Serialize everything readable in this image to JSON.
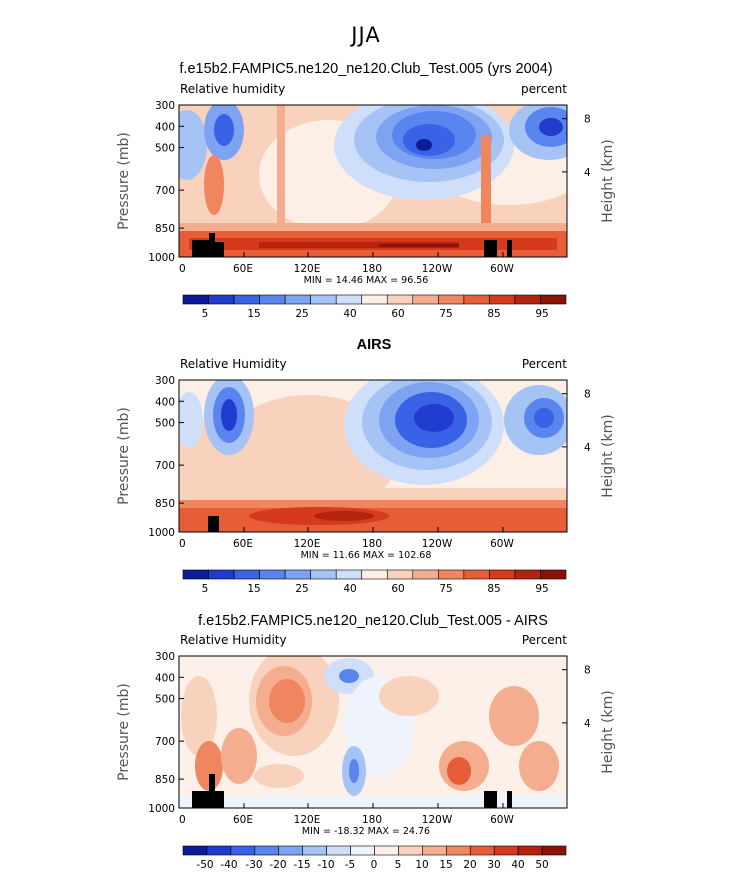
{
  "figure": {
    "main_title": "JJA",
    "colors": {
      "levels_rh": [
        "#0b1b9a",
        "#1f3ccf",
        "#3a62e6",
        "#5a84ee",
        "#7ea3f2",
        "#a6c3f6",
        "#cfdff9",
        "#fcefe6",
        "#f8d2bd",
        "#f4ae8f",
        "#ef8660",
        "#e65d38",
        "#d43a1b",
        "#b3230e",
        "#8a1206"
      ],
      "levels_diff": [
        "#0b1b9a",
        "#1f3ccf",
        "#3a62e6",
        "#5a84ee",
        "#7ea3f2",
        "#a6c3f6",
        "#cfdff9",
        "#eef3fc",
        "#fdf0e8",
        "#f8d2bd",
        "#f4ae8f",
        "#ef8660",
        "#e65d38",
        "#d43a1b",
        "#b3230e",
        "#8a1206"
      ],
      "topography": "#000000"
    }
  },
  "chart_data": [
    {
      "type": "heatmap",
      "title": "f.e15b2.FAMPIC5.ne120_ne120.Club_Test.005 (yrs 2004)",
      "left_label": "Relative humidity",
      "right_label": "percent",
      "ylabel": "Pressure (mb)",
      "y2label": "Height (km)",
      "x_ticks": [
        "0",
        "60E",
        "120E",
        "180",
        "120W",
        "60W"
      ],
      "y_ticks": [
        "300",
        "400",
        "500",
        "700",
        "850",
        "1000"
      ],
      "y2_ticks": [
        "8",
        "4"
      ],
      "stats": "MIN =  14.46   MAX =  96.56",
      "colorbar_labels": [
        "5",
        "15",
        "25",
        "40",
        "60",
        "75",
        "85",
        "95"
      ],
      "ylim": [
        1000,
        300
      ],
      "xlim": [
        0,
        360
      ]
    },
    {
      "type": "heatmap",
      "title": "AIRS",
      "left_label": "Relative Humidity",
      "right_label": "Percent",
      "ylabel": "Pressure (mb)",
      "y2label": "Height (km)",
      "x_ticks": [
        "0",
        "60E",
        "120E",
        "180",
        "120W",
        "60W"
      ],
      "y_ticks": [
        "300",
        "400",
        "500",
        "700",
        "850",
        "1000"
      ],
      "y2_ticks": [
        "8",
        "4"
      ],
      "stats": "MIN =  11.66   MAX =  102.68",
      "colorbar_labels": [
        "5",
        "15",
        "25",
        "40",
        "60",
        "75",
        "85",
        "95"
      ],
      "ylim": [
        1000,
        300
      ],
      "xlim": [
        0,
        360
      ]
    },
    {
      "type": "heatmap",
      "title": "f.e15b2.FAMPIC5.ne120_ne120.Club_Test.005 - AIRS",
      "left_label": "Relative Humidity",
      "right_label": "Percent",
      "ylabel": "Pressure (mb)",
      "y2label": "Height (km)",
      "x_ticks": [
        "0",
        "60E",
        "120E",
        "180",
        "120W",
        "60W"
      ],
      "y_ticks": [
        "300",
        "400",
        "500",
        "700",
        "850",
        "1000"
      ],
      "y2_ticks": [
        "8",
        "4"
      ],
      "stats": "MIN = -18.32   MAX =  24.76",
      "colorbar_labels": [
        "-50",
        "-40",
        "-30",
        "-20",
        "-15",
        "-10",
        "-5",
        "0",
        "5",
        "10",
        "15",
        "20",
        "30",
        "40",
        "50"
      ],
      "ylim": [
        1000,
        300
      ],
      "xlim": [
        0,
        360
      ]
    }
  ]
}
